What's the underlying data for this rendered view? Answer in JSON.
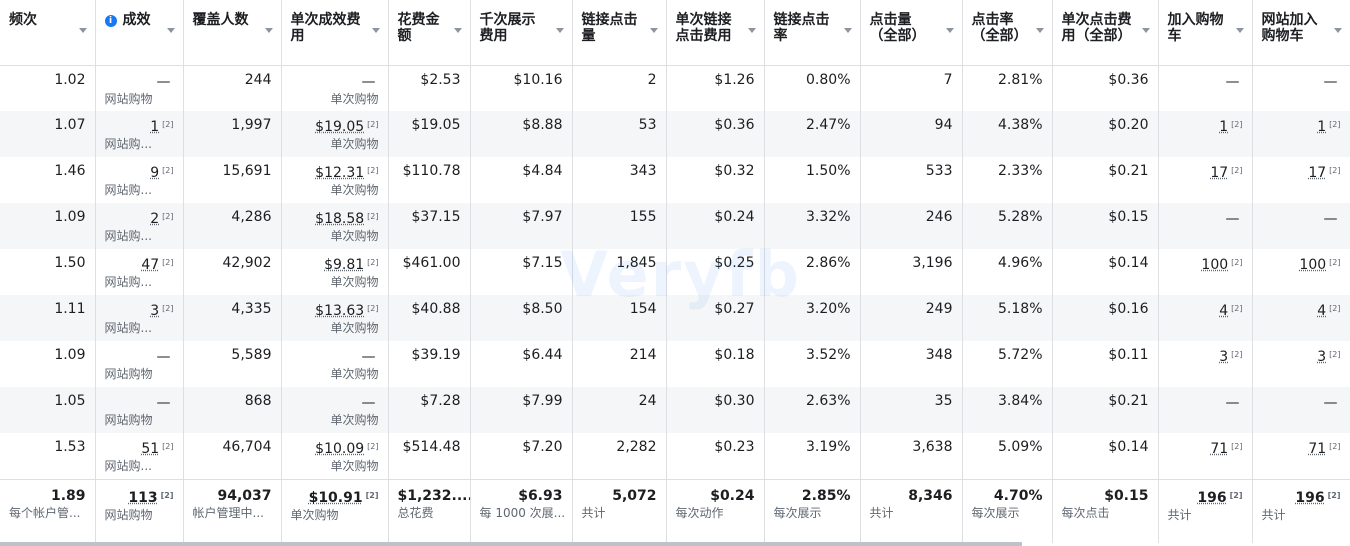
{
  "columns": [
    {
      "label": "频次"
    },
    {
      "label": "成效",
      "icon": "info-icon"
    },
    {
      "label": "覆盖人数"
    },
    {
      "label": "单次成效费用"
    },
    {
      "label": "花费金额"
    },
    {
      "label": "千次展示费用"
    },
    {
      "label": "链接点击量"
    },
    {
      "label": "单次链接点击费用"
    },
    {
      "label": "链接点击率"
    },
    {
      "label": "点击量（全部）"
    },
    {
      "label": "点击率（全部）"
    },
    {
      "label": "单次点击费用（全部）"
    },
    {
      "label": "加入购物车"
    },
    {
      "label": "网站加入购物车"
    }
  ],
  "rows": [
    {
      "freq": "1.02",
      "results": "—",
      "results_sub": "网站购物",
      "results_sup": "",
      "reach": "244",
      "cpr": "—",
      "cpr_sub": "单次购物",
      "cpr_sup": "",
      "spend": "$2.53",
      "cpm": "$10.16",
      "link_clicks": "2",
      "cpc_link": "$1.26",
      "ctr_link": "0.80%",
      "clicks_all": "7",
      "ctr_all": "2.81%",
      "cpc_all": "$0.36",
      "atc": "—",
      "atc_sup": "",
      "watc": "—",
      "watc_sup": ""
    },
    {
      "freq": "1.07",
      "results": "1",
      "results_sub": "网站购...",
      "results_sup": "[2]",
      "reach": "1,997",
      "cpr": "$19.05",
      "cpr_sub": "单次购物",
      "cpr_sup": "[2]",
      "spend": "$19.05",
      "cpm": "$8.88",
      "link_clicks": "53",
      "cpc_link": "$0.36",
      "ctr_link": "2.47%",
      "clicks_all": "94",
      "ctr_all": "4.38%",
      "cpc_all": "$0.20",
      "atc": "1",
      "atc_sup": "[2]",
      "watc": "1",
      "watc_sup": "[2]"
    },
    {
      "freq": "1.46",
      "results": "9",
      "results_sub": "网站购...",
      "results_sup": "[2]",
      "reach": "15,691",
      "cpr": "$12.31",
      "cpr_sub": "单次购物",
      "cpr_sup": "[2]",
      "spend": "$110.78",
      "cpm": "$4.84",
      "link_clicks": "343",
      "cpc_link": "$0.32",
      "ctr_link": "1.50%",
      "clicks_all": "533",
      "ctr_all": "2.33%",
      "cpc_all": "$0.21",
      "atc": "17",
      "atc_sup": "[2]",
      "watc": "17",
      "watc_sup": "[2]"
    },
    {
      "freq": "1.09",
      "results": "2",
      "results_sub": "网站购...",
      "results_sup": "[2]",
      "reach": "4,286",
      "cpr": "$18.58",
      "cpr_sub": "单次购物",
      "cpr_sup": "[2]",
      "spend": "$37.15",
      "cpm": "$7.97",
      "link_clicks": "155",
      "cpc_link": "$0.24",
      "ctr_link": "3.32%",
      "clicks_all": "246",
      "ctr_all": "5.28%",
      "cpc_all": "$0.15",
      "atc": "—",
      "atc_sup": "",
      "watc": "—",
      "watc_sup": ""
    },
    {
      "freq": "1.50",
      "results": "47",
      "results_sub": "网站购...",
      "results_sup": "[2]",
      "reach": "42,902",
      "cpr": "$9.81",
      "cpr_sub": "单次购物",
      "cpr_sup": "[2]",
      "spend": "$461.00",
      "cpm": "$7.15",
      "link_clicks": "1,845",
      "cpc_link": "$0.25",
      "ctr_link": "2.86%",
      "clicks_all": "3,196",
      "ctr_all": "4.96%",
      "cpc_all": "$0.14",
      "atc": "100",
      "atc_sup": "[2]",
      "watc": "100",
      "watc_sup": "[2]"
    },
    {
      "freq": "1.11",
      "results": "3",
      "results_sub": "网站购...",
      "results_sup": "[2]",
      "reach": "4,335",
      "cpr": "$13.63",
      "cpr_sub": "单次购物",
      "cpr_sup": "[2]",
      "spend": "$40.88",
      "cpm": "$8.50",
      "link_clicks": "154",
      "cpc_link": "$0.27",
      "ctr_link": "3.20%",
      "clicks_all": "249",
      "ctr_all": "5.18%",
      "cpc_all": "$0.16",
      "atc": "4",
      "atc_sup": "[2]",
      "watc": "4",
      "watc_sup": "[2]"
    },
    {
      "freq": "1.09",
      "results": "—",
      "results_sub": "网站购物",
      "results_sup": "",
      "reach": "5,589",
      "cpr": "—",
      "cpr_sub": "单次购物",
      "cpr_sup": "",
      "spend": "$39.19",
      "cpm": "$6.44",
      "link_clicks": "214",
      "cpc_link": "$0.18",
      "ctr_link": "3.52%",
      "clicks_all": "348",
      "ctr_all": "5.72%",
      "cpc_all": "$0.11",
      "atc": "3",
      "atc_sup": "[2]",
      "watc": "3",
      "watc_sup": "[2]"
    },
    {
      "freq": "1.05",
      "results": "—",
      "results_sub": "网站购物",
      "results_sup": "",
      "reach": "868",
      "cpr": "—",
      "cpr_sub": "单次购物",
      "cpr_sup": "",
      "spend": "$7.28",
      "cpm": "$7.99",
      "link_clicks": "24",
      "cpc_link": "$0.30",
      "ctr_link": "2.63%",
      "clicks_all": "35",
      "ctr_all": "3.84%",
      "cpc_all": "$0.21",
      "atc": "—",
      "atc_sup": "",
      "watc": "—",
      "watc_sup": ""
    },
    {
      "freq": "1.53",
      "results": "51",
      "results_sub": "网站购...",
      "results_sup": "[2]",
      "reach": "46,704",
      "cpr": "$10.09",
      "cpr_sub": "单次购物",
      "cpr_sup": "[2]",
      "spend": "$514.48",
      "cpm": "$7.20",
      "link_clicks": "2,282",
      "cpc_link": "$0.23",
      "ctr_link": "3.19%",
      "clicks_all": "3,638",
      "ctr_all": "5.09%",
      "cpc_all": "$0.14",
      "atc": "71",
      "atc_sup": "[2]",
      "watc": "71",
      "watc_sup": "[2]"
    }
  ],
  "totals": {
    "freq": "1.89",
    "freq_sub": "每个帐户管...",
    "results": "113",
    "results_sup": "[2]",
    "results_sub": "网站购物",
    "reach": "94,037",
    "reach_sub": "帐户管理中...",
    "cpr": "$10.91",
    "cpr_sup": "[2]",
    "cpr_sub": "单次购物",
    "spend": "$1,232....",
    "spend_sub": "总花费",
    "cpm": "$6.93",
    "cpm_sub": "每 1000 次展...",
    "link_clicks": "5,072",
    "link_clicks_sub": "共计",
    "cpc_link": "$0.24",
    "cpc_link_sub": "每次动作",
    "ctr_link": "2.85%",
    "ctr_link_sub": "每次展示",
    "clicks_all": "8,346",
    "clicks_all_sub": "共计",
    "ctr_all": "4.70%",
    "ctr_all_sub": "每次展示",
    "cpc_all": "$0.15",
    "cpc_all_sub": "每次点击",
    "atc": "196",
    "atc_sup": "[2]",
    "atc_sub": "共计",
    "watc": "196",
    "watc_sup": "[2]",
    "watc_sub": "共计"
  },
  "watermark": "Veryfb"
}
